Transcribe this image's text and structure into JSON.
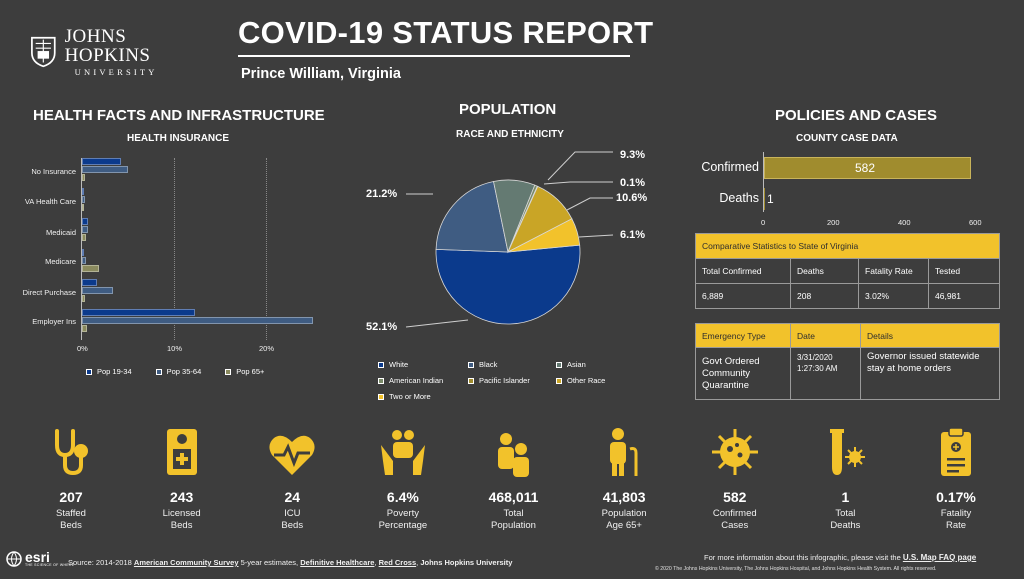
{
  "header": {
    "logo_main": "JOHNS HOPKINS",
    "logo_sub": "UNIVERSITY",
    "title": "COVID-19 STATUS REPORT",
    "location": "Prince William,  Virginia"
  },
  "health": {
    "title": "HEALTH FACTS AND INFRASTRUCTURE",
    "subtitle": "HEALTH INSURANCE",
    "categories": [
      "No Insurance",
      "VA Health Care",
      "Medicaid",
      "Medicare",
      "Direct Purchase",
      "Employer Ins"
    ],
    "ticks": [
      "0%",
      "10%",
      "20%"
    ],
    "legend": [
      "Pop 19-34",
      "Pop 35-64",
      "Pop 65+"
    ]
  },
  "population": {
    "title": "POPULATION",
    "subtitle": "RACE AND ETHNICITY",
    "labels": [
      "9.3%",
      "0.1%",
      "10.6%",
      "6.1%",
      "21.2%",
      "52.1%"
    ],
    "legend": [
      "White",
      "Black",
      "Asian",
      "American Indian",
      "Pacific Islander",
      "Other Race",
      "Two or More"
    ]
  },
  "policies": {
    "title": "POLICIES AND CASES",
    "subtitle": "COUNTY CASE DATA",
    "confirmed_label": "Confirmed",
    "confirmed_value": "582",
    "deaths_label": "Deaths",
    "deaths_value": "1",
    "axis_ticks": [
      "0",
      "200",
      "400",
      "600"
    ],
    "comp_header": "Comparative Statistics to State of Virginia",
    "comp_cols": [
      "Total Confirmed",
      "Deaths",
      "Fatality Rate",
      "Tested"
    ],
    "comp_vals": [
      "6,889",
      "208",
      "3.02%",
      "46,981"
    ],
    "emerg_cols": [
      "Emergency Type",
      "Date",
      "Details"
    ],
    "emerg_type": "Govt Ordered Community Quarantine",
    "emerg_date": "3/31/2020 1:27:30 AM",
    "emerg_details": "Governor issued statewide stay at home orders"
  },
  "stats": [
    {
      "value": "207",
      "label": "Staffed Beds",
      "icon": "stethoscope-icon"
    },
    {
      "value": "243",
      "label": "Licensed Beds",
      "icon": "hospital-bed-icon"
    },
    {
      "value": "24",
      "label": "ICU Beds",
      "icon": "heartbeat-icon"
    },
    {
      "value": "6.4%",
      "label": "Poverty Percentage",
      "icon": "hands-people-icon"
    },
    {
      "value": "468,011",
      "label": "Total Population",
      "icon": "people-icon"
    },
    {
      "value": "41,803",
      "label": "Population Age 65+",
      "icon": "elderly-icon"
    },
    {
      "value": "582",
      "label": "Confirmed Cases",
      "icon": "virus-icon"
    },
    {
      "value": "1",
      "label": "Total Deaths",
      "icon": "test-tube-icon"
    },
    {
      "value": "0.17%",
      "label": "Fatality Rate",
      "icon": "clipboard-icon"
    }
  ],
  "footer": {
    "esri": "esri",
    "esri_tag": "THE SCIENCE OF WHERE",
    "source_prefix": "Source: 2014-2018",
    "source_acs": "American Community Survey",
    "source_mid": "5-year estimates,",
    "source_dh": "Definitive Healthcare",
    "source_rc": "Red Cross",
    "source_jhu": "Johns Hopkins University",
    "more_info": "For more information about this infographic, please visit the",
    "faq": "U.S. Map FAQ page",
    "copyright": "© 2020 The Johns Hopkins University, The Johns Hopkins Hospital, and Johns Hopkins Health System. All rights reserved."
  },
  "colors": {
    "background": "#3d3d3d",
    "gold": "#f2c22b",
    "olive": "#a08c2e",
    "navy": "#0b3a8c",
    "slate": "#3f5c82",
    "khaki": "#8a8a5e",
    "sage": "#647a72"
  },
  "chart_data": [
    {
      "type": "bar",
      "orientation": "horizontal",
      "title": "HEALTH INSURANCE",
      "categories": [
        "No Insurance",
        "VA Health Care",
        "Medicaid",
        "Medicare",
        "Direct Purchase",
        "Employer Ins"
      ],
      "series": [
        {
          "name": "Pop 19-34",
          "values": [
            4.2,
            0.2,
            0.7,
            0.2,
            1.6,
            12.2
          ]
        },
        {
          "name": "Pop 35-64",
          "values": [
            5.0,
            0.3,
            0.7,
            0.4,
            3.3,
            25.0
          ]
        },
        {
          "name": "Pop 65+",
          "values": [
            0.3,
            0.2,
            0.4,
            1.8,
            0.3,
            0.5
          ]
        }
      ],
      "xlim": [
        0,
        25
      ],
      "xticks": [
        "0%",
        "10%",
        "20%"
      ],
      "legend": "bottom"
    },
    {
      "type": "pie",
      "title": "RACE AND ETHNICITY",
      "categories": [
        "White",
        "Black",
        "Asian",
        "American Indian",
        "Pacific Islander",
        "Other Race",
        "Two or More"
      ],
      "values": [
        52.1,
        21.2,
        9.3,
        0.6,
        0.1,
        10.6,
        6.1
      ],
      "legend": "bottom"
    },
    {
      "type": "bar",
      "orientation": "horizontal",
      "title": "COUNTY CASE DATA",
      "categories": [
        "Confirmed",
        "Deaths"
      ],
      "values": [
        582,
        1
      ],
      "xlim": [
        0,
        650
      ],
      "xticks": [
        "0",
        "200",
        "400",
        "600"
      ]
    }
  ]
}
